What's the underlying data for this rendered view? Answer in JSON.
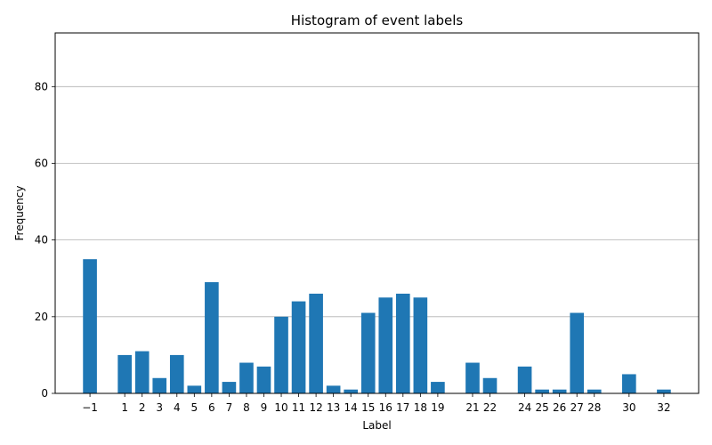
{
  "chart_data": {
    "type": "bar",
    "title": "Histogram of event labels",
    "xlabel": "Label",
    "ylabel": "Frequency",
    "x": [
      -1,
      1,
      2,
      3,
      4,
      5,
      6,
      7,
      8,
      9,
      10,
      11,
      12,
      13,
      14,
      15,
      16,
      17,
      18,
      19,
      21,
      22,
      24,
      25,
      26,
      27,
      28,
      30,
      32
    ],
    "x_tick_labels": [
      "−1",
      "1",
      "2",
      "3",
      "4",
      "5",
      "6",
      "7",
      "8",
      "9",
      "10",
      "11",
      "12",
      "13",
      "14",
      "15",
      "16",
      "17",
      "18",
      "19",
      "21",
      "22",
      "24",
      "25",
      "26",
      "27",
      "28",
      "30",
      "32"
    ],
    "values": [
      35,
      10,
      11,
      4,
      10,
      2,
      29,
      3,
      8,
      7,
      20,
      24,
      26,
      2,
      1,
      21,
      25,
      26,
      25,
      3,
      8,
      4,
      7,
      1,
      1,
      21,
      1,
      5,
      1
    ],
    "y_ticks": [
      0,
      20,
      40,
      60,
      80
    ],
    "y_tick_labels": [
      "0",
      "20",
      "40",
      "60",
      "80"
    ],
    "xlim": [
      -3.0,
      34.0
    ],
    "ylim": [
      0,
      94
    ],
    "grid": "y",
    "bar_color": "#1f77b4"
  }
}
